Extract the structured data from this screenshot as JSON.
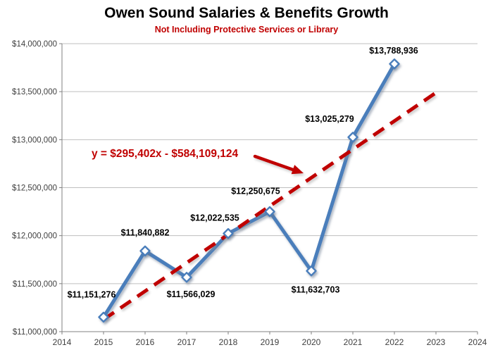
{
  "chart_data": {
    "type": "line",
    "title": "Owen Sound Salaries & Benefits Growth",
    "subtitle": "Not Including Protective Services or Library",
    "categories": [
      2015,
      2016,
      2017,
      2018,
      2019,
      2020,
      2021,
      2022
    ],
    "values": [
      11151276,
      11840882,
      11566029,
      12022535,
      12250675,
      11632703,
      13025279,
      13788936
    ],
    "point_labels": [
      "$11,151,276",
      "$11,840,882",
      "$11,566,029",
      "$12,022,535",
      "$12,250,675",
      "$11,632,703",
      "$13,025,279",
      "$13,788,936"
    ],
    "xlabel": "",
    "ylabel": "",
    "xlim": [
      2014,
      2024
    ],
    "ylim": [
      11000000,
      14000000
    ],
    "x_ticks": [
      "2014",
      "2015",
      "2016",
      "2017",
      "2018",
      "2019",
      "2020",
      "2021",
      "2022",
      "2023",
      "2024"
    ],
    "y_ticks": [
      {
        "value": 14000000,
        "label": "$14,000,000"
      },
      {
        "value": 13500000,
        "label": "$13,500,000"
      },
      {
        "value": 13000000,
        "label": "$13,000,000"
      },
      {
        "value": 12500000,
        "label": "$12,500,000"
      },
      {
        "value": 12000000,
        "label": "$12,000,000"
      },
      {
        "value": 11500000,
        "label": "$11,500,000"
      },
      {
        "value": 11000000,
        "label": "$11,000,000"
      }
    ],
    "grid": true,
    "legend": "none",
    "trendline": {
      "equation": "y = $295,402x - $584,109,124",
      "slope": 295402,
      "intercept": -584109124,
      "x_start": 2015,
      "x_end": 2023,
      "style": "dashed"
    },
    "colors": {
      "series": "#4A7EBB",
      "marker_fill": "#FFFFFF",
      "trend": "#C00000",
      "annotation": "#C00000",
      "grid": "#BFBFBF",
      "axis": "#808080",
      "tick_text": "#3F3F3F",
      "label_text": "#000000",
      "title": "#000000",
      "subtitle": "#C00000"
    }
  }
}
